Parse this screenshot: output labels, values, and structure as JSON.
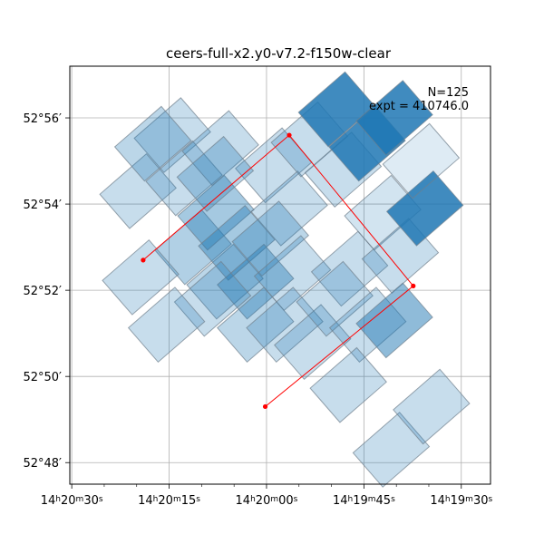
{
  "chart_data": {
    "type": "footprint",
    "title": "ceers-full-x2.y0-v7.2-f150w-clear",
    "annotation_lines": [
      "N=125",
      "expt = 410746.0"
    ],
    "xlabel": "",
    "ylabel": "",
    "x_axis": {
      "unit": "arcsec of RA",
      "ticks": [
        {
          "value": 30,
          "label": "14h20m30s"
        },
        {
          "value": 15,
          "label": "14h20m15s"
        },
        {
          "value": 0,
          "label": "14h20m00s"
        },
        {
          "value": -15,
          "label": "14h19m45s"
        },
        {
          "value": -30,
          "label": "14h19m30s"
        }
      ],
      "range": [
        30.3,
        -34.5
      ],
      "inverted": true
    },
    "y_axis": {
      "unit": "arcmin of Dec offset from 52°",
      "ticks": [
        {
          "value": 56,
          "label": "52°56′"
        },
        {
          "value": 54,
          "label": "52°54′"
        },
        {
          "value": 52,
          "label": "52°52′"
        },
        {
          "value": 50,
          "label": "52°50′"
        },
        {
          "value": 48,
          "label": "52°48′"
        }
      ],
      "range": [
        47.5,
        57.2
      ]
    },
    "grid": true,
    "footprint_color": "#1f77b4",
    "tile_angle_deg": -41,
    "tiles": [
      {
        "ra": 14.5,
        "dec": 55.6,
        "shade": 0.25
      },
      {
        "ra": 19.8,
        "dec": 54.3,
        "shade": 0.25
      },
      {
        "ra": 17.5,
        "dec": 55.4,
        "shade": 0.3
      },
      {
        "ra": 12.7,
        "dec": 54.6,
        "shade": 0.25
      },
      {
        "ra": 11.3,
        "dec": 53.0,
        "shade": 0.35
      },
      {
        "ra": 7.8,
        "dec": 53.8,
        "shade": 0.4
      },
      {
        "ra": 6.4,
        "dec": 52.2,
        "shade": 0.3
      },
      {
        "ra": 4.6,
        "dec": 53.1,
        "shade": 0.4
      },
      {
        "ra": 1.7,
        "dec": 52.2,
        "shade": 0.4
      },
      {
        "ra": 1.7,
        "dec": 51.2,
        "shade": 0.3
      },
      {
        "ra": -1.1,
        "dec": 54.9,
        "shade": 0.25
      },
      {
        "ra": -3.5,
        "dec": 53.9,
        "shade": 0.25
      },
      {
        "ra": -0.6,
        "dec": 53.2,
        "shade": 0.3
      },
      {
        "ra": -4.0,
        "dec": 52.4,
        "shade": 0.25
      },
      {
        "ra": -2.8,
        "dec": 51.2,
        "shade": 0.25
      },
      {
        "ra": -7.1,
        "dec": 50.8,
        "shade": 0.25
      },
      {
        "ra": -6.6,
        "dec": 55.5,
        "shade": 0.25
      },
      {
        "ra": -11.8,
        "dec": 54.8,
        "shade": 0.25
      },
      {
        "ra": -12.8,
        "dec": 52.5,
        "shade": 0.25
      },
      {
        "ra": -10.5,
        "dec": 51.8,
        "shade": 0.25
      },
      {
        "ra": -15.6,
        "dec": 51.2,
        "shade": 0.25
      },
      {
        "ra": -12.6,
        "dec": 49.8,
        "shade": 0.25
      },
      {
        "ra": -17.9,
        "dec": 53.8,
        "shade": 0.2
      },
      {
        "ra": -20.6,
        "dec": 52.8,
        "shade": 0.25
      },
      {
        "ra": -19.7,
        "dec": 51.3,
        "shade": 0.5
      },
      {
        "ra": -10.8,
        "dec": 56.2,
        "shade": 0.85
      },
      {
        "ra": -15.5,
        "dec": 55.4,
        "shade": 0.85
      },
      {
        "ra": -19.7,
        "dec": 56.0,
        "shade": 0.85
      },
      {
        "ra": -24.4,
        "dec": 53.9,
        "shade": 0.85
      },
      {
        "ra": -23.8,
        "dec": 55.0,
        "shade": 0.15
      },
      {
        "ra": -19.2,
        "dec": 48.3,
        "shade": 0.25
      },
      {
        "ra": -25.4,
        "dec": 49.3,
        "shade": 0.25
      },
      {
        "ra": 8.3,
        "dec": 51.8,
        "shade": 0.25
      },
      {
        "ra": 7.1,
        "dec": 55.3,
        "shade": 0.25
      },
      {
        "ra": 7.9,
        "dec": 54.7,
        "shade": 0.3
      },
      {
        "ra": 19.4,
        "dec": 52.3,
        "shade": 0.25
      },
      {
        "ra": 15.4,
        "dec": 51.2,
        "shade": 0.25
      }
    ],
    "path_points": [
      {
        "ra": 19.0,
        "dec": 52.7
      },
      {
        "ra": -3.5,
        "dec": 55.6
      },
      {
        "ra": -22.6,
        "dec": 52.1
      },
      {
        "ra": 0.2,
        "dec": 49.3
      }
    ],
    "path_color": "#ff0000"
  }
}
